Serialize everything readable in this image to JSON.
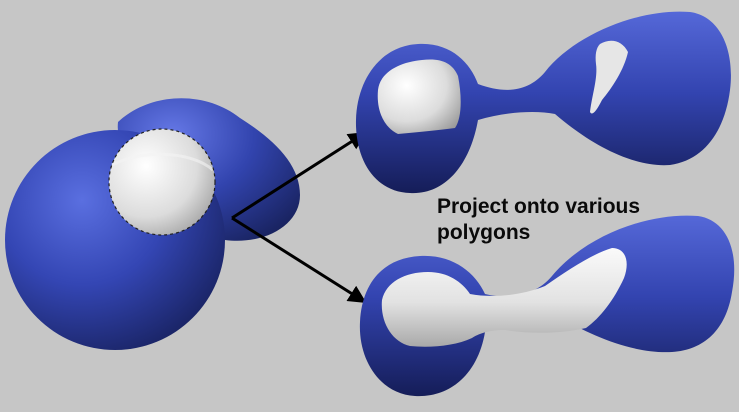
{
  "caption": {
    "line1": "Project onto various",
    "line2": "polygons"
  },
  "colors": {
    "background": "#c6c6c6",
    "shape_blue": "#3446b0",
    "projection_white": "#e8e8e8",
    "arrow": "#000000"
  }
}
